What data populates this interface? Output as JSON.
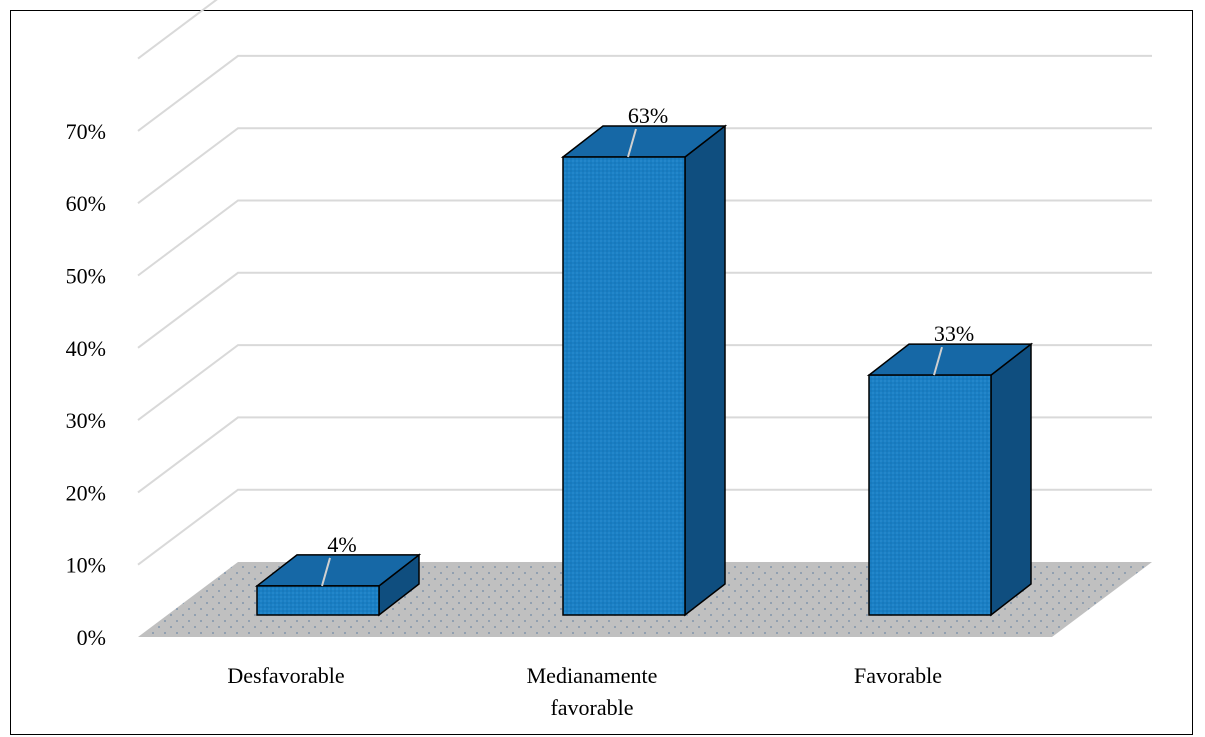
{
  "chart_data": {
    "type": "bar",
    "categories": [
      "Desfavorable",
      "Medianamente favorable",
      "Favorable"
    ],
    "category_lines": [
      [
        "Desfavorable"
      ],
      [
        "Medianamente",
        "favorable"
      ],
      [
        "Favorable"
      ]
    ],
    "values": [
      4,
      63,
      33
    ],
    "data_labels": [
      "4%",
      "63%",
      "33%"
    ],
    "y_ticks": [
      0,
      10,
      20,
      30,
      40,
      50,
      60,
      70
    ],
    "y_tick_labels": [
      "0%",
      "10%",
      "20%",
      "30%",
      "40%",
      "50%",
      "60%",
      "70%"
    ],
    "ylim": [
      0,
      70
    ],
    "title": "",
    "xlabel": "",
    "ylabel": "",
    "grid": true,
    "legend": "none",
    "colors": {
      "bar_front": "#1a7fc4",
      "bar_top": "#1668a6",
      "bar_side": "#0f4e7f",
      "floor": "#c0c0c0",
      "gridline": "#d9d9d9"
    }
  }
}
